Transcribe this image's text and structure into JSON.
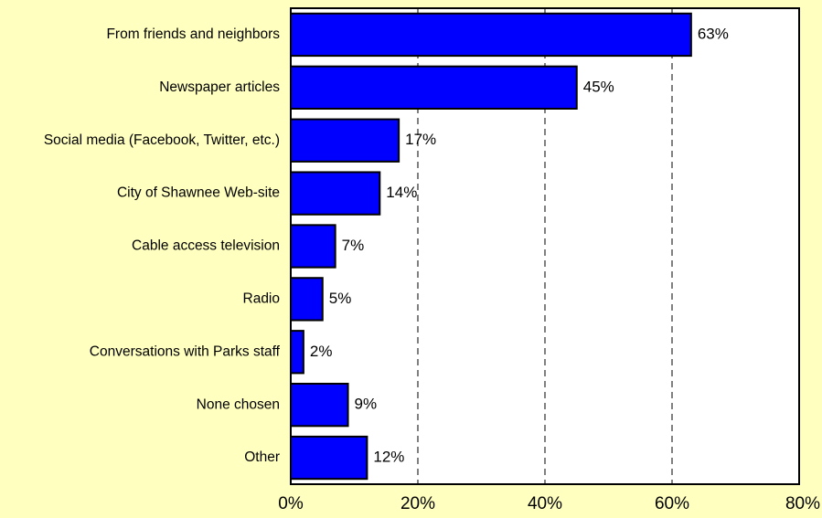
{
  "chart_data": {
    "type": "bar",
    "orientation": "horizontal",
    "title": "",
    "xlabel": "",
    "ylabel": "",
    "categories": [
      "From friends and neighbors",
      "Newspaper articles",
      "Social media (Facebook, Twitter, etc.)",
      "City of Shawnee Web-site",
      "Cable access television",
      "Radio",
      "Conversations with Parks staff",
      "None chosen",
      "Other"
    ],
    "values": [
      63,
      45,
      17,
      14,
      7,
      5,
      2,
      9,
      12
    ],
    "value_labels": [
      "63%",
      "45%",
      "17%",
      "14%",
      "7%",
      "5%",
      "2%",
      "9%",
      "12%"
    ],
    "xlim": [
      0,
      80
    ],
    "x_ticks": [
      0,
      20,
      40,
      60,
      80
    ],
    "x_tick_labels": [
      "0%",
      "20%",
      "40%",
      "60%",
      "80%"
    ],
    "grid": "vertical dashed",
    "legend": "none",
    "colors": {
      "background": "#FFFFC0",
      "plot_area": "#FFFFFF",
      "bar_fill": "#0000FF",
      "bar_stroke": "#000000",
      "grid": "#000000"
    }
  }
}
